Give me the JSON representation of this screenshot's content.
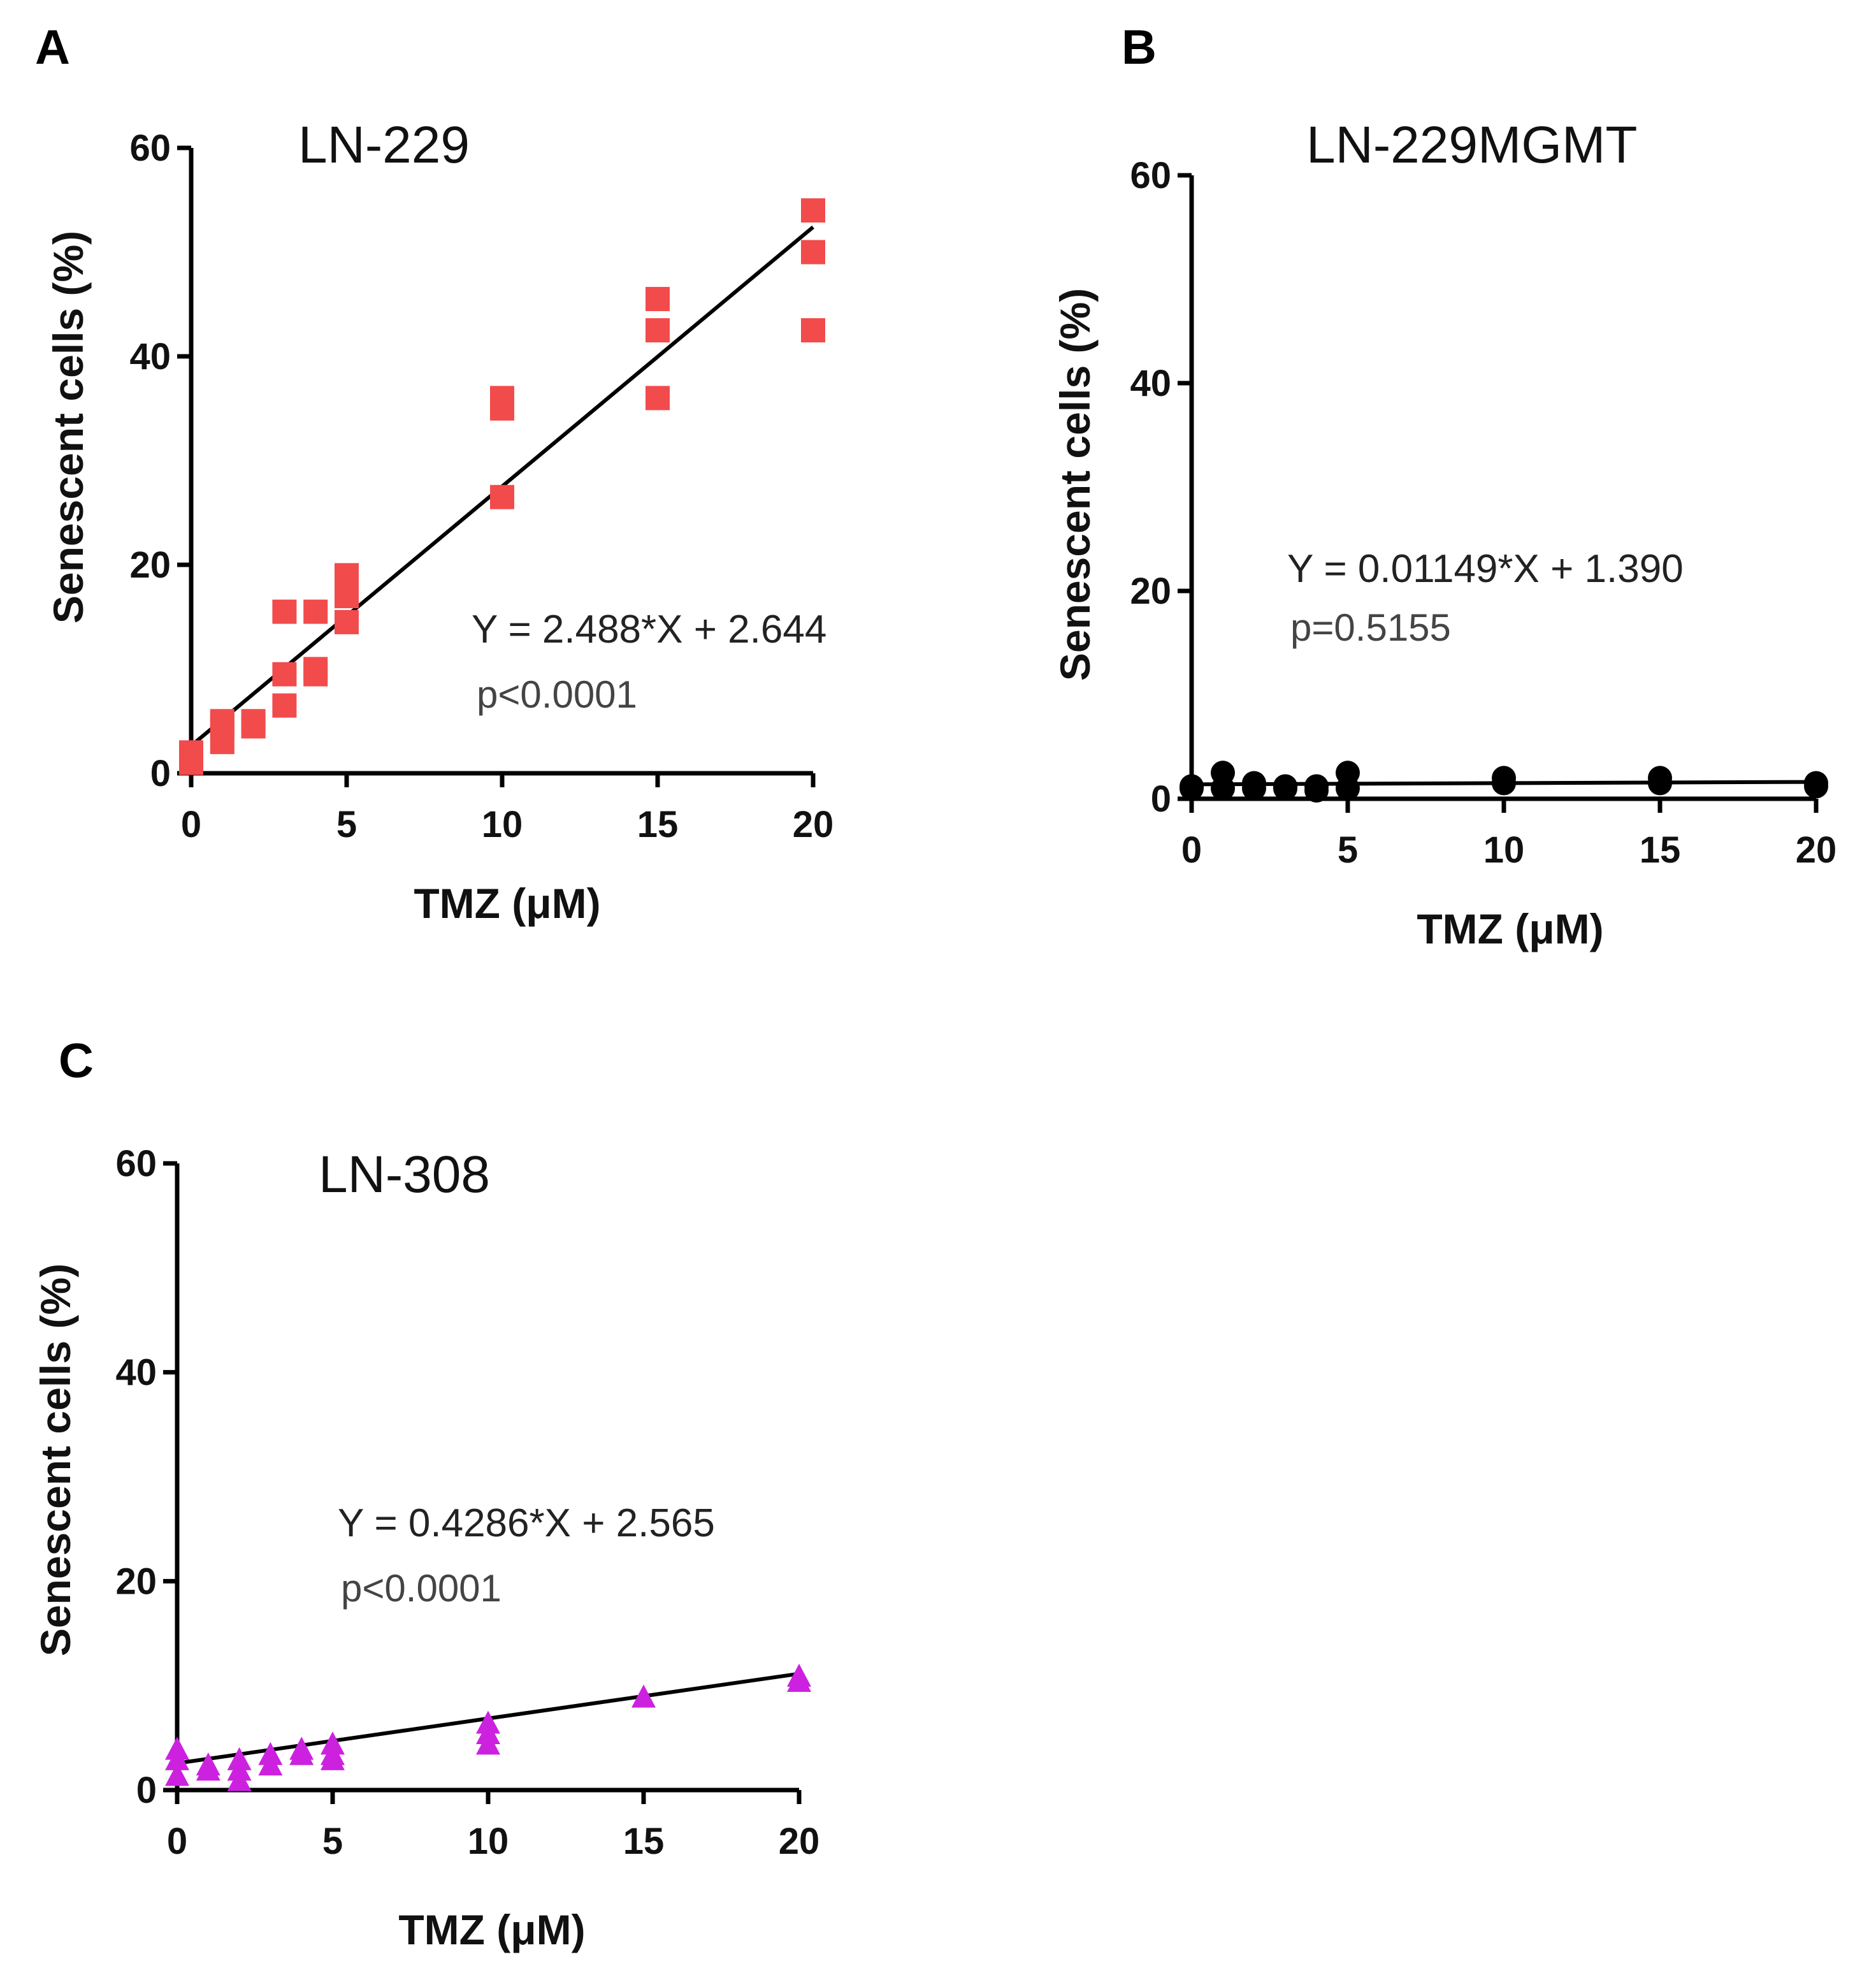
{
  "chart_data": [
    {
      "panel_label": "A",
      "type": "scatter",
      "title": "LN-229",
      "xlabel": "TMZ (μM)",
      "ylabel": "Senescent cells (%)",
      "xlim": [
        0,
        20
      ],
      "ylim": [
        0,
        60
      ],
      "xticks": [
        0,
        5,
        10,
        15,
        20
      ],
      "yticks": [
        0,
        20,
        40,
        60
      ],
      "marker": "square",
      "color": "#f24b4b",
      "points": [
        {
          "x": 0,
          "y": 1
        },
        {
          "x": 0,
          "y": 1.5
        },
        {
          "x": 0,
          "y": 2
        },
        {
          "x": 1,
          "y": 3
        },
        {
          "x": 1,
          "y": 4.5
        },
        {
          "x": 1,
          "y": 5
        },
        {
          "x": 2,
          "y": 4.5
        },
        {
          "x": 2,
          "y": 5
        },
        {
          "x": 3,
          "y": 6.5
        },
        {
          "x": 3,
          "y": 9.5
        },
        {
          "x": 3,
          "y": 15.5
        },
        {
          "x": 4,
          "y": 9.5
        },
        {
          "x": 4,
          "y": 10
        },
        {
          "x": 4,
          "y": 15.5
        },
        {
          "x": 5,
          "y": 14.5
        },
        {
          "x": 5,
          "y": 17
        },
        {
          "x": 5,
          "y": 19
        },
        {
          "x": 10,
          "y": 26.5
        },
        {
          "x": 10,
          "y": 35
        },
        {
          "x": 10,
          "y": 36
        },
        {
          "x": 15,
          "y": 36
        },
        {
          "x": 15,
          "y": 42.5
        },
        {
          "x": 15,
          "y": 45.5
        },
        {
          "x": 20,
          "y": 42.5
        },
        {
          "x": 20,
          "y": 50
        },
        {
          "x": 20,
          "y": 54
        }
      ],
      "fit": {
        "slope": 2.488,
        "intercept": 2.644
      },
      "equation": "Y = 2.488*X + 2.644",
      "p_value": "p<0.0001"
    },
    {
      "panel_label": "B",
      "type": "scatter",
      "title": "LN-229MGMT",
      "xlabel": "TMZ (μM)",
      "ylabel": "Senescent cells (%)",
      "xlim": [
        0,
        20
      ],
      "ylim": [
        0,
        60
      ],
      "xticks": [
        0,
        5,
        10,
        15,
        20
      ],
      "yticks": [
        0,
        20,
        40,
        60
      ],
      "marker": "circle",
      "color": "#000000",
      "points": [
        {
          "x": 0,
          "y": 1
        },
        {
          "x": 0,
          "y": 1.2
        },
        {
          "x": 1,
          "y": 1
        },
        {
          "x": 1,
          "y": 2.5
        },
        {
          "x": 2,
          "y": 1
        },
        {
          "x": 2,
          "y": 1.5
        },
        {
          "x": 3,
          "y": 1
        },
        {
          "x": 3,
          "y": 1.2
        },
        {
          "x": 4,
          "y": 0.8
        },
        {
          "x": 4,
          "y": 1.2
        },
        {
          "x": 5,
          "y": 1
        },
        {
          "x": 5,
          "y": 2.5
        },
        {
          "x": 10,
          "y": 1.5
        },
        {
          "x": 10,
          "y": 2
        },
        {
          "x": 15,
          "y": 1.5
        },
        {
          "x": 15,
          "y": 2
        },
        {
          "x": 20,
          "y": 1.2
        },
        {
          "x": 20,
          "y": 1.5
        }
      ],
      "fit": {
        "slope": 0.01149,
        "intercept": 1.39
      },
      "equation": "Y = 0.01149*X + 1.390",
      "p_value": "p=0.5155"
    },
    {
      "panel_label": "C",
      "type": "scatter",
      "title": "LN-308",
      "xlabel": "TMZ (μM)",
      "ylabel": "Senescent cells (%)",
      "xlim": [
        0,
        20
      ],
      "ylim": [
        0,
        60
      ],
      "xticks": [
        0,
        5,
        10,
        15,
        20
      ],
      "yticks": [
        0,
        20,
        40,
        60
      ],
      "marker": "triangle",
      "color": "#cc22e0",
      "points": [
        {
          "x": 0,
          "y": 1.5
        },
        {
          "x": 0,
          "y": 3
        },
        {
          "x": 0,
          "y": 4
        },
        {
          "x": 1,
          "y": 2
        },
        {
          "x": 1,
          "y": 2.5
        },
        {
          "x": 2,
          "y": 1
        },
        {
          "x": 2,
          "y": 2
        },
        {
          "x": 2,
          "y": 3
        },
        {
          "x": 3,
          "y": 2.5
        },
        {
          "x": 3,
          "y": 3.5
        },
        {
          "x": 4,
          "y": 3.5
        },
        {
          "x": 4,
          "y": 4
        },
        {
          "x": 5,
          "y": 3
        },
        {
          "x": 5,
          "y": 3.5
        },
        {
          "x": 5,
          "y": 4.5
        },
        {
          "x": 10,
          "y": 4.5
        },
        {
          "x": 10,
          "y": 5.5
        },
        {
          "x": 10,
          "y": 6.5
        },
        {
          "x": 15,
          "y": 9
        },
        {
          "x": 20,
          "y": 10.5
        },
        {
          "x": 20,
          "y": 11
        }
      ],
      "fit": {
        "slope": 0.4286,
        "intercept": 2.565
      },
      "equation": "Y = 0.4286*X + 2.565",
      "p_value": "p<0.0001"
    }
  ]
}
